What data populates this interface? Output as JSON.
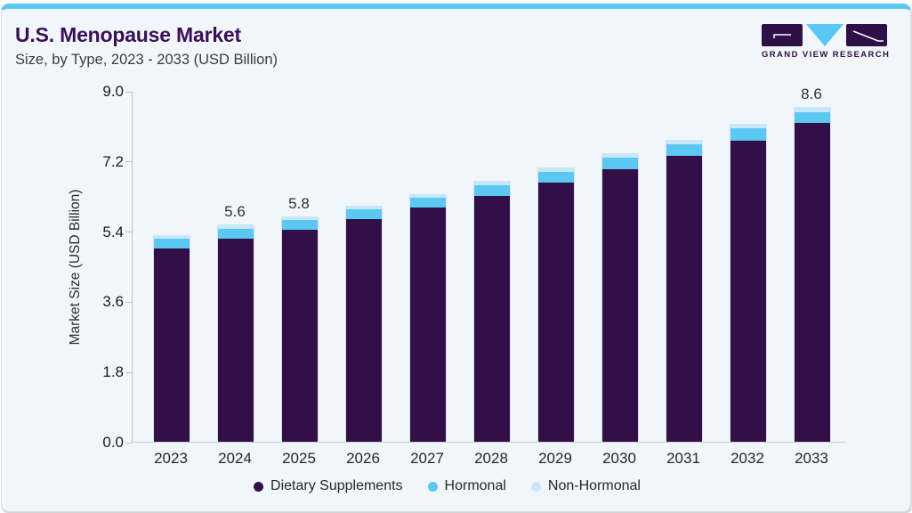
{
  "card": {
    "background": "#f1f6fa",
    "top_bar_color": "#5bc7f3",
    "border_color": "#d5dfe6"
  },
  "header": {
    "title": "U.S. Menopause Market",
    "title_color": "#3a1158",
    "subtitle": "Size, by Type, 2023 - 2033 (USD Billion)",
    "subtitle_color": "#3b3b44"
  },
  "logo": {
    "text": "GRAND VIEW RESEARCH",
    "purple": "#2f0f47",
    "blue": "#5bc7f3"
  },
  "chart_data": {
    "type": "bar",
    "stacked": true,
    "title": "U.S. Menopause Market Size, by Type, 2023 - 2033 (USD Billion)",
    "categories": [
      "2023",
      "2024",
      "2025",
      "2026",
      "2027",
      "2028",
      "2029",
      "2030",
      "2031",
      "2032",
      "2033"
    ],
    "series": [
      {
        "name": "Dietary Supplements",
        "color": "#321047",
        "values": [
          4.95,
          5.2,
          5.43,
          5.7,
          6.0,
          6.3,
          6.64,
          6.99,
          7.33,
          7.73,
          8.18
        ]
      },
      {
        "name": "Hormonal",
        "color": "#5bc7f3",
        "values": [
          0.25,
          0.27,
          0.26,
          0.26,
          0.26,
          0.29,
          0.29,
          0.29,
          0.29,
          0.3,
          0.28
        ]
      },
      {
        "name": "Non-Hormonal",
        "color": "#c7e8f8",
        "values": [
          0.1,
          0.1,
          0.1,
          0.1,
          0.1,
          0.1,
          0.11,
          0.11,
          0.13,
          0.13,
          0.14
        ]
      }
    ],
    "totals": [
      5.3,
      5.6,
      5.8,
      6.1,
      6.4,
      6.7,
      7.0,
      7.4,
      7.8,
      8.2,
      8.6
    ],
    "value_labels": {
      "2024": "5.6",
      "2025": "5.8",
      "2033": "8.6"
    },
    "ylabel": "Market Size (USD Billion)",
    "yticks": [
      0.0,
      1.8,
      3.6,
      5.4,
      7.2,
      9.0
    ],
    "ylim": [
      0,
      9
    ],
    "grid": false,
    "legend_position": "bottom",
    "axis_color": "#bdc5ce",
    "tick_label_color": "#1a1a22",
    "value_label_color": "#2f2f38"
  }
}
